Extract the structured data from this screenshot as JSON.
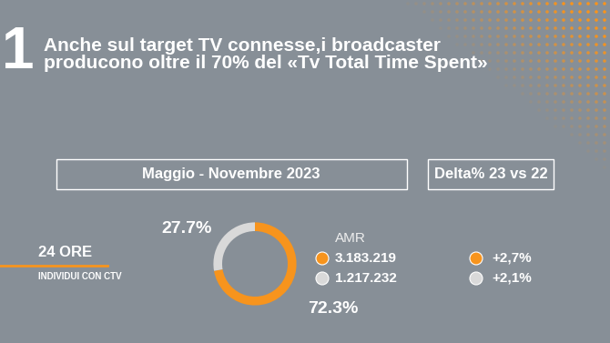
{
  "slide_number": "1",
  "title": "Anche sul target TV connesse,i broadcaster\nproducono oltre il 70% del «Tv Total Time Spent»",
  "period": "Maggio - Novembre 2023",
  "delta_header": "Delta% 23 vs 22",
  "target": {
    "timeslot": "24 ORE",
    "audience": "INDIVIDUI CON CTV"
  },
  "chart_data": {
    "type": "donut",
    "values": [
      72.3,
      27.7
    ],
    "value_labels": [
      "72.3%",
      "27.7%"
    ],
    "colors": [
      "#f7941d",
      "#d9d9d9"
    ],
    "data_labels": true,
    "amr_title": "AMR",
    "amr_values": [
      3183219,
      1217232
    ],
    "amr_value_labels": [
      "3.183.219",
      "1.217.232"
    ],
    "delta_values": [
      2.7,
      2.1
    ],
    "delta_labels": [
      "+2,7%",
      "+2,1%"
    ]
  }
}
